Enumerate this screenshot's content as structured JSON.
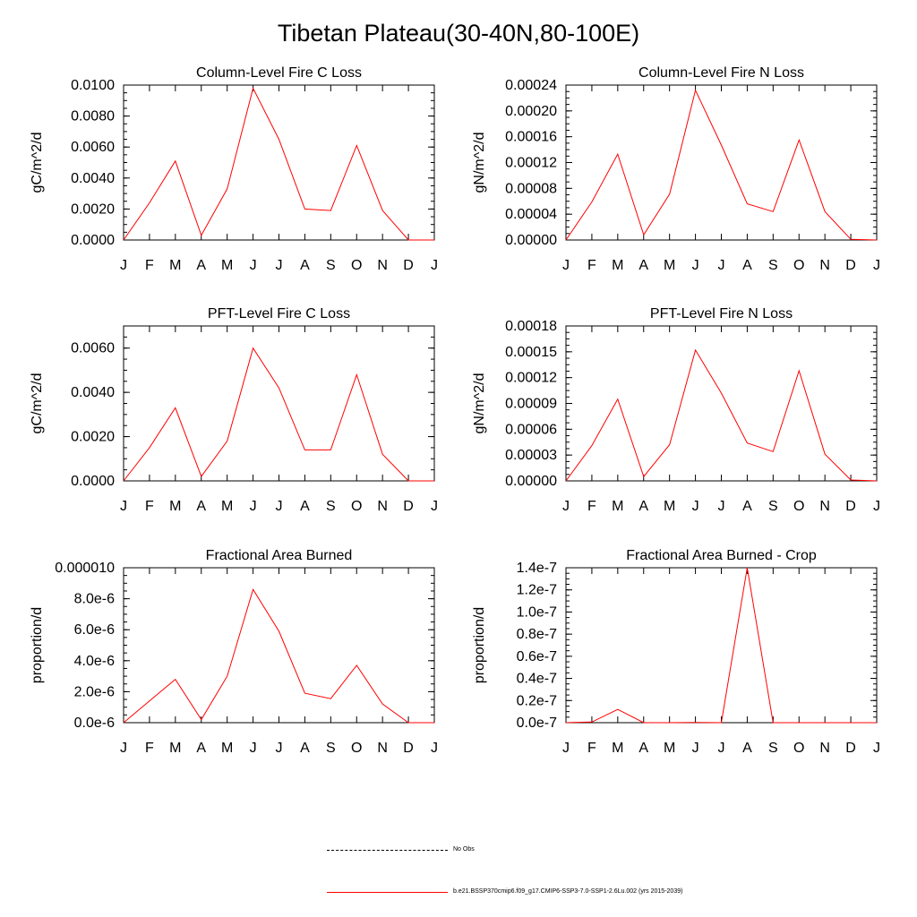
{
  "title": "Tibetan Plateau(30-40N,80-100E)",
  "months": [
    "J",
    "F",
    "M",
    "A",
    "M",
    "J",
    "J",
    "A",
    "S",
    "O",
    "N",
    "D",
    "J"
  ],
  "chart_data": [
    {
      "type": "line",
      "title": "Column-Level Fire C Loss",
      "ylabel": "gC/m^2/d",
      "ylim": [
        0,
        0.01
      ],
      "yticks": [
        "0.0000",
        "0.0020",
        "0.0040",
        "0.0060",
        "0.0080",
        "0.0100"
      ],
      "series": [
        {
          "color": "#ff0000",
          "values": [
            0.0,
            0.0024,
            0.0051,
            0.0003,
            0.0033,
            0.0098,
            0.0065,
            0.002,
            0.0019,
            0.0061,
            0.0019,
            0.0,
            0.0
          ]
        }
      ]
    },
    {
      "type": "line",
      "title": "Column-Level Fire N Loss",
      "ylabel": "gN/m^2/d",
      "ylim": [
        0,
        0.00024
      ],
      "yticks": [
        "0.00000",
        "0.00004",
        "0.00008",
        "0.00012",
        "0.00016",
        "0.00020",
        "0.00024"
      ],
      "series": [
        {
          "color": "#ff0000",
          "values": [
            0.0,
            5.9e-05,
            0.000133,
            8e-06,
            7.1e-05,
            0.000232,
            0.000147,
            5.6e-05,
            4.4e-05,
            0.000155,
            4.4e-05,
            1e-06,
            0.0
          ]
        }
      ]
    },
    {
      "type": "line",
      "title": "PFT-Level Fire C Loss",
      "ylabel": "gC/m^2/d",
      "ylim": [
        0,
        0.007
      ],
      "yticks": [
        "0.0000",
        "0.0020",
        "0.0040",
        "0.0060"
      ],
      "series": [
        {
          "color": "#ff0000",
          "values": [
            0.0,
            0.0015,
            0.0033,
            0.0002,
            0.0018,
            0.006,
            0.0042,
            0.0014,
            0.0014,
            0.0048,
            0.0012,
            0.0,
            0.0
          ]
        }
      ]
    },
    {
      "type": "line",
      "title": "PFT-Level Fire N Loss",
      "ylabel": "gN/m^2/d",
      "ylim": [
        0,
        0.00018
      ],
      "yticks": [
        "0.00000",
        "0.00003",
        "0.00006",
        "0.00009",
        "0.00012",
        "0.00015",
        "0.00018"
      ],
      "series": [
        {
          "color": "#ff0000",
          "values": [
            0.0,
            4.1e-05,
            9.5e-05,
            5e-06,
            4.2e-05,
            0.000152,
            0.000102,
            4.4e-05,
            3.4e-05,
            0.000128,
            3.1e-05,
            1e-06,
            0.0
          ]
        }
      ]
    },
    {
      "type": "line",
      "title": "Fractional Area Burned",
      "ylabel": "proportion/d",
      "ylim": [
        0,
        1e-05
      ],
      "yticks": [
        "0.0e-6",
        "2.0e-6",
        "4.0e-6",
        "6.0e-6",
        "8.0e-6",
        "0.000010"
      ],
      "series": [
        {
          "color": "#ff0000",
          "values": [
            0.0,
            1.4e-06,
            2.8e-06,
            2e-07,
            3e-06,
            8.6e-06,
            5.9e-06,
            1.9e-06,
            1.55e-06,
            3.7e-06,
            1.2e-06,
            0.0,
            0.0
          ]
        }
      ]
    },
    {
      "type": "line",
      "title": "Fractional Area Burned - Crop",
      "ylabel": "proportion/d",
      "ylim": [
        0,
        1.4e-07
      ],
      "yticks": [
        "0.0e-7",
        "0.2e-7",
        "0.4e-7",
        "0.6e-7",
        "0.8e-7",
        "1.0e-7",
        "1.2e-7",
        "1.4e-7"
      ],
      "series": [
        {
          "color": "#ff0000",
          "values": [
            0.0,
            6e-10,
            1.2e-08,
            0.0,
            0.0,
            2e-10,
            0.0,
            1.4e-07,
            0.0,
            0.0,
            0.0,
            0.0,
            0.0
          ]
        }
      ]
    }
  ],
  "legend": {
    "items": [
      {
        "label": "No Obs",
        "color": "#000000",
        "style": "dashed"
      },
      {
        "label": "b.e21.BSSP370cmip6.f09_g17.CMIP6-SSP3-7.0-SSP1-2.6Lu.002 (yrs 2015-2039)",
        "color": "#ff0000",
        "style": "solid"
      }
    ]
  }
}
